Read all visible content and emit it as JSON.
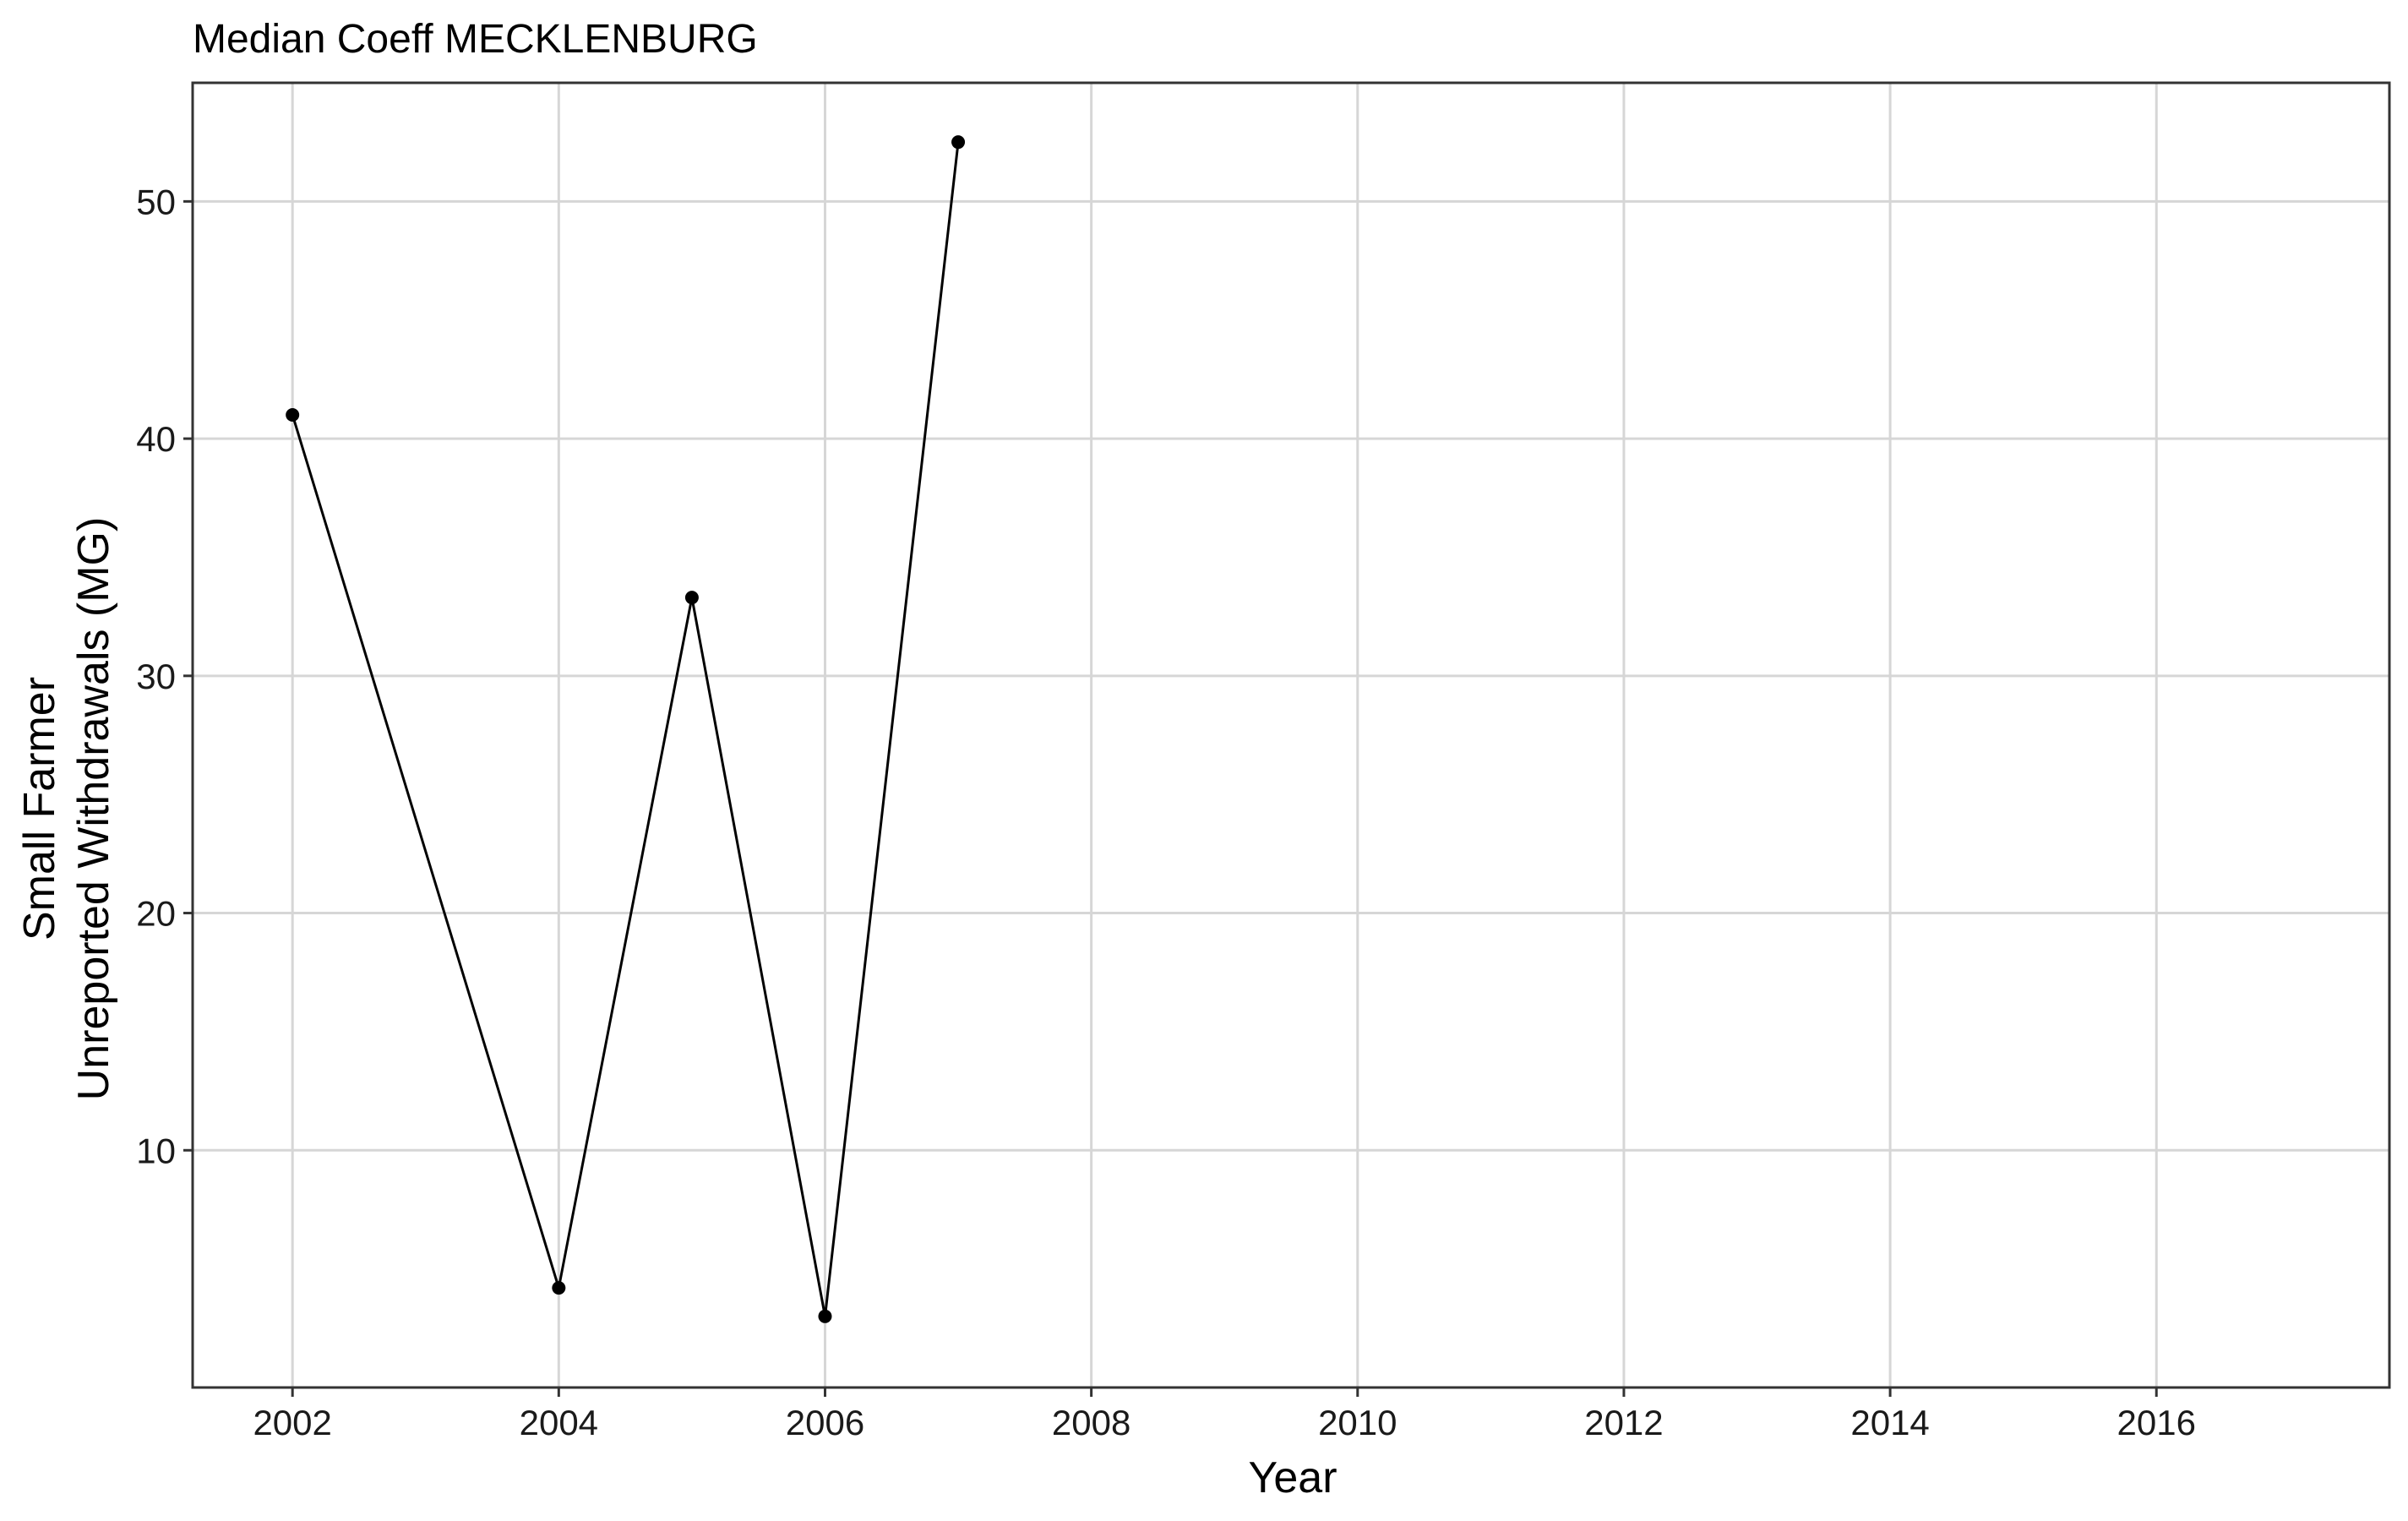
{
  "chart_data": {
    "type": "line",
    "title": "Median Coeff MECKLENBURG",
    "xlabel": "Year",
    "ylabel_lines": [
      "Small Farmer",
      "Unreported Withdrawals (MG)"
    ],
    "xlim": [
      2001.25,
      2017.75
    ],
    "ylim": [
      0.0,
      55.0
    ],
    "x_ticks": [
      2002,
      2004,
      2006,
      2008,
      2010,
      2012,
      2014,
      2016
    ],
    "y_ticks": [
      10,
      20,
      30,
      40,
      50
    ],
    "grid": true,
    "series": [
      {
        "x": [
          2002,
          2004,
          2005,
          2006,
          2007
        ],
        "values": [
          41.0,
          4.2,
          33.3,
          3.0,
          52.5
        ]
      }
    ]
  }
}
